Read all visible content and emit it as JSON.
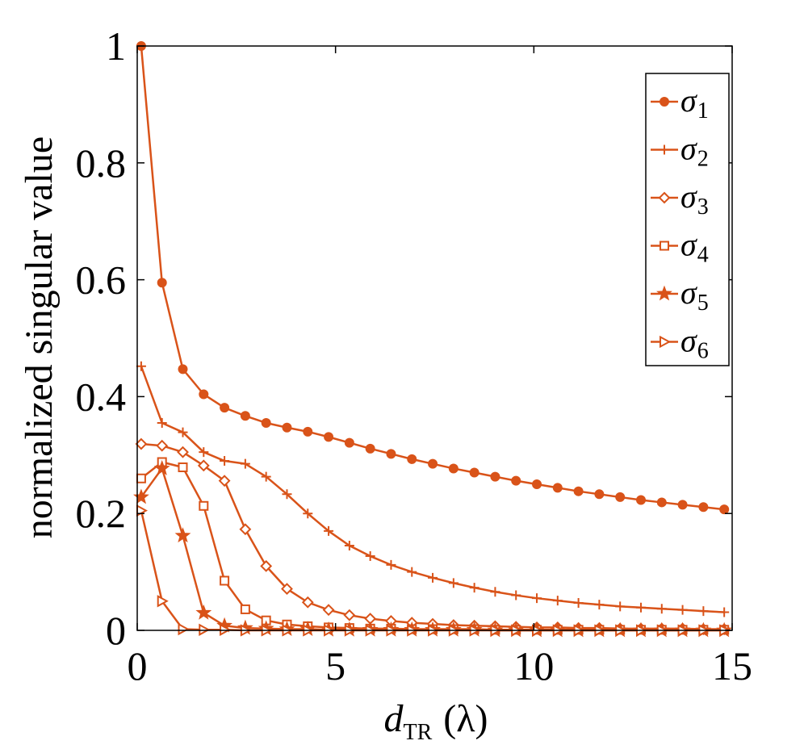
{
  "chart_data": {
    "type": "line",
    "title": "",
    "xlabel_main": "d",
    "xlabel_sub": "TR",
    "xlabel_suffix": "(λ)",
    "ylabel": "normalized singular value",
    "xlim": [
      0,
      15
    ],
    "ylim": [
      0,
      1
    ],
    "xticks": [
      0,
      5,
      10,
      15
    ],
    "xtick_labels": [
      "0",
      "5",
      "10",
      "15"
    ],
    "yticks": [
      0,
      0.2,
      0.4,
      0.6,
      0.8,
      1
    ],
    "ytick_labels": [
      "0",
      "0.2",
      "0.4",
      "0.6",
      "0.8",
      "1"
    ],
    "grid": false,
    "legend_position": "top-right",
    "color": "#d95319",
    "x": [
      0.1,
      0.625,
      1.15,
      1.675,
      2.2,
      2.725,
      3.25,
      3.775,
      4.3,
      4.825,
      5.35,
      5.875,
      6.4,
      6.925,
      7.45,
      7.975,
      8.5,
      9.025,
      9.55,
      10.075,
      10.6,
      11.125,
      11.65,
      12.175,
      12.7,
      13.225,
      13.75,
      14.275,
      14.8
    ],
    "series": [
      {
        "name": "σ1",
        "symbol": "σ",
        "sub": "1",
        "marker": "dot",
        "values": [
          1.0,
          0.595,
          0.447,
          0.404,
          0.381,
          0.367,
          0.355,
          0.347,
          0.34,
          0.331,
          0.321,
          0.311,
          0.302,
          0.293,
          0.285,
          0.277,
          0.27,
          0.263,
          0.256,
          0.25,
          0.244,
          0.238,
          0.233,
          0.228,
          0.223,
          0.219,
          0.215,
          0.211,
          0.207
        ]
      },
      {
        "name": "σ2",
        "symbol": "σ",
        "sub": "2",
        "marker": "plus",
        "values": [
          0.452,
          0.355,
          0.339,
          0.305,
          0.29,
          0.285,
          0.263,
          0.233,
          0.2,
          0.17,
          0.145,
          0.127,
          0.112,
          0.1,
          0.09,
          0.081,
          0.073,
          0.066,
          0.06,
          0.055,
          0.051,
          0.047,
          0.044,
          0.041,
          0.039,
          0.037,
          0.035,
          0.033,
          0.031
        ]
      },
      {
        "name": "σ3",
        "symbol": "σ",
        "sub": "3",
        "marker": "diamond",
        "values": [
          0.319,
          0.316,
          0.305,
          0.282,
          0.256,
          0.173,
          0.11,
          0.071,
          0.048,
          0.035,
          0.026,
          0.02,
          0.016,
          0.013,
          0.011,
          0.009,
          0.008,
          0.007,
          0.006,
          0.005,
          0.005,
          0.004,
          0.004,
          0.003,
          0.003,
          0.003,
          0.003,
          0.002,
          0.002
        ]
      },
      {
        "name": "σ4",
        "symbol": "σ",
        "sub": "4",
        "marker": "square",
        "values": [
          0.26,
          0.288,
          0.279,
          0.213,
          0.085,
          0.036,
          0.017,
          0.01,
          0.007,
          0.005,
          0.004,
          0.003,
          0.003,
          0.002,
          0.002,
          0.002,
          0.002,
          0.001,
          0.001,
          0.001,
          0.001,
          0.001,
          0.001,
          0.001,
          0.001,
          0.001,
          0.001,
          0.001,
          0.001
        ]
      },
      {
        "name": "σ5",
        "symbol": "σ",
        "sub": "5",
        "marker": "star",
        "values": [
          0.228,
          0.277,
          0.162,
          0.03,
          0.008,
          0.004,
          0.003,
          0.002,
          0.002,
          0.001,
          0.001,
          0.001,
          0.001,
          0.001,
          0.001,
          0.001,
          0.001,
          0.0,
          0.0,
          0.0,
          0.0,
          0.0,
          0.0,
          0.0,
          0.0,
          0.0,
          0.0,
          0.0,
          0.0
        ]
      },
      {
        "name": "σ6",
        "symbol": "σ",
        "sub": "6",
        "marker": "triangle-right",
        "values": [
          0.205,
          0.05,
          0.002,
          0.001,
          0.001,
          0.0,
          0.0,
          0.0,
          0.0,
          0.0,
          0.0,
          0.0,
          0.0,
          0.0,
          0.0,
          0.0,
          0.0,
          0.0,
          0.0,
          0.0,
          0.0,
          0.0,
          0.0,
          0.0,
          0.0,
          0.0,
          0.0,
          0.0,
          0.0
        ]
      }
    ]
  }
}
